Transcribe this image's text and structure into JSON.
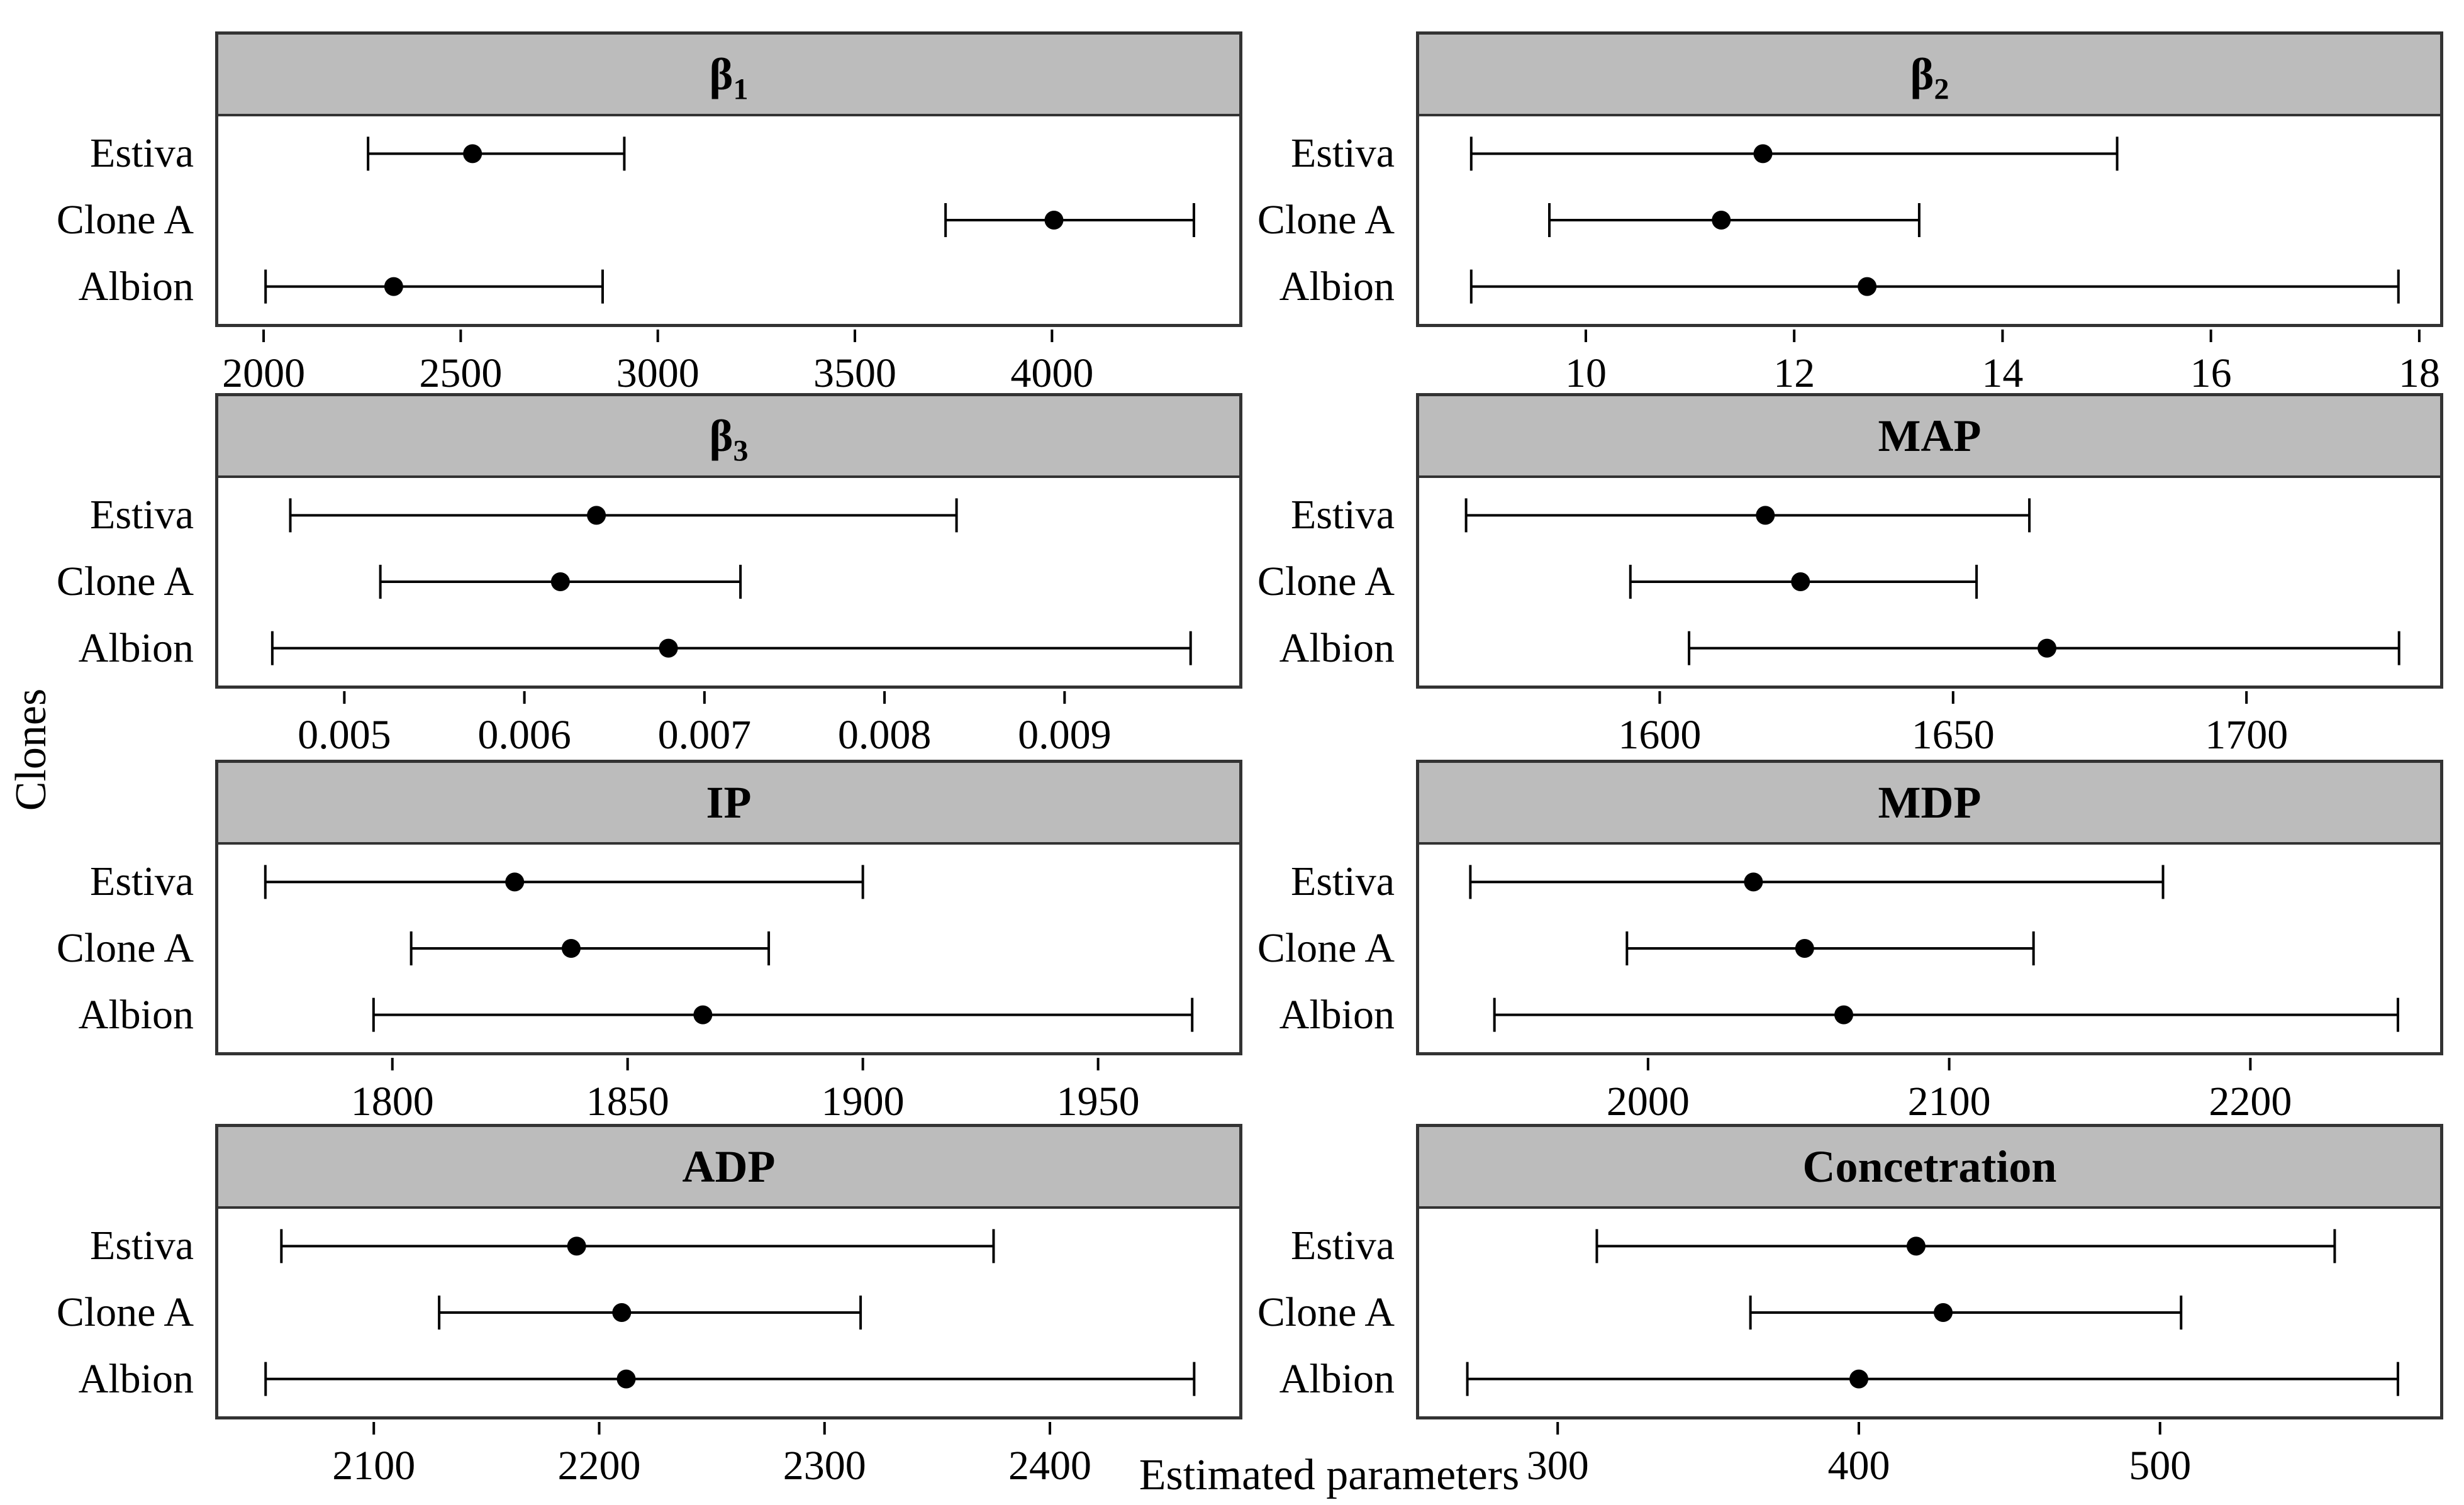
{
  "figure": {
    "x_axis_label": "Estimated parameters",
    "y_axis_label": "Clones",
    "colors": {
      "strip_bg": "#bcbcbc",
      "frame": "#333333",
      "data": "#000000",
      "page_bg": "#ffffff"
    }
  },
  "chart_data": {
    "type": "dotplot",
    "layout": "lattice 4 rows x 2 columns, point estimates with horizontal confidence-interval whiskers",
    "legend_position": "none",
    "grid": "off",
    "categories": [
      "Estiva",
      "Clone A",
      "Albion"
    ],
    "xlabel": "Estimated parameters",
    "ylabel": "Clones",
    "panels": [
      {
        "title": "β",
        "title_sub": "1",
        "xlim": [
          1885,
          4475
        ],
        "ticks": [
          2000,
          2500,
          3000,
          3500,
          4000
        ],
        "tick_labels": [
          "2000",
          "2500",
          "3000",
          "3500",
          "4000"
        ],
        "series": [
          {
            "clone": "Estiva",
            "estimate": 2530,
            "ci_low": 2265,
            "ci_high": 2915
          },
          {
            "clone": "Clone A",
            "estimate": 4005,
            "ci_low": 3730,
            "ci_high": 4360
          },
          {
            "clone": "Albion",
            "estimate": 2330,
            "ci_low": 2005,
            "ci_high": 2860
          }
        ]
      },
      {
        "title": "β",
        "title_sub": "2",
        "xlim": [
          8.4,
          18.2
        ],
        "ticks": [
          10,
          12,
          14,
          16,
          18
        ],
        "tick_labels": [
          "10",
          "12",
          "14",
          "16",
          "18"
        ],
        "series": [
          {
            "clone": "Estiva",
            "estimate": 11.7,
            "ci_low": 8.9,
            "ci_high": 15.1
          },
          {
            "clone": "Clone A",
            "estimate": 11.3,
            "ci_low": 9.65,
            "ci_high": 13.2
          },
          {
            "clone": "Albion",
            "estimate": 12.7,
            "ci_low": 8.9,
            "ci_high": 17.8
          }
        ]
      },
      {
        "title": "β",
        "title_sub": "3",
        "xlim": [
          0.0043,
          0.00997
        ],
        "ticks": [
          0.005,
          0.006,
          0.007,
          0.008,
          0.009
        ],
        "tick_labels": [
          "0.005",
          "0.006",
          "0.007",
          "0.008",
          "0.009"
        ],
        "series": [
          {
            "clone": "Estiva",
            "estimate": 0.0064,
            "ci_low": 0.0047,
            "ci_high": 0.0084
          },
          {
            "clone": "Clone A",
            "estimate": 0.0062,
            "ci_low": 0.0052,
            "ci_high": 0.0072
          },
          {
            "clone": "Albion",
            "estimate": 0.0068,
            "ci_low": 0.0046,
            "ci_high": 0.0097
          }
        ]
      },
      {
        "title": "MAP",
        "xlim": [
          1559,
          1733
        ],
        "ticks": [
          1600,
          1650,
          1700
        ],
        "tick_labels": [
          "1600",
          "1650",
          "1700"
        ],
        "series": [
          {
            "clone": "Estiva",
            "estimate": 1618,
            "ci_low": 1567,
            "ci_high": 1663
          },
          {
            "clone": "Clone A",
            "estimate": 1624,
            "ci_low": 1595,
            "ci_high": 1654
          },
          {
            "clone": "Albion",
            "estimate": 1666,
            "ci_low": 1605,
            "ci_high": 1726
          }
        ]
      },
      {
        "title": "IP",
        "xlim": [
          1763,
          1980
        ],
        "ticks": [
          1800,
          1850,
          1900,
          1950
        ],
        "tick_labels": [
          "1800",
          "1850",
          "1900",
          "1950"
        ],
        "series": [
          {
            "clone": "Estiva",
            "estimate": 1826,
            "ci_low": 1773,
            "ci_high": 1900
          },
          {
            "clone": "Clone A",
            "estimate": 1838,
            "ci_low": 1804,
            "ci_high": 1880
          },
          {
            "clone": "Albion",
            "estimate": 1866,
            "ci_low": 1796,
            "ci_high": 1970
          }
        ]
      },
      {
        "title": "MDP",
        "xlim": [
          1924,
          2263
        ],
        "ticks": [
          2000,
          2100,
          2200
        ],
        "tick_labels": [
          "2000",
          "2100",
          "2200"
        ],
        "series": [
          {
            "clone": "Estiva",
            "estimate": 2035,
            "ci_low": 1941,
            "ci_high": 2171
          },
          {
            "clone": "Clone A",
            "estimate": 2052,
            "ci_low": 1993,
            "ci_high": 2128
          },
          {
            "clone": "Albion",
            "estimate": 2065,
            "ci_low": 1949,
            "ci_high": 2249
          }
        ]
      },
      {
        "title": "ADP",
        "xlim": [
          2031,
          2484
        ],
        "ticks": [
          2100,
          2200,
          2300,
          2400
        ],
        "tick_labels": [
          "2100",
          "2200",
          "2300",
          "2400"
        ],
        "series": [
          {
            "clone": "Estiva",
            "estimate": 2190,
            "ci_low": 2059,
            "ci_high": 2375
          },
          {
            "clone": "Clone A",
            "estimate": 2210,
            "ci_low": 2129,
            "ci_high": 2316
          },
          {
            "clone": "Albion",
            "estimate": 2212,
            "ci_low": 2052,
            "ci_high": 2464
          }
        ]
      },
      {
        "title": "Concetration",
        "xlim": [
          254,
          593
        ],
        "ticks": [
          300,
          400,
          500
        ],
        "tick_labels": [
          "300",
          "400",
          "500"
        ],
        "series": [
          {
            "clone": "Estiva",
            "estimate": 419,
            "ci_low": 313,
            "ci_high": 558
          },
          {
            "clone": "Clone A",
            "estimate": 428,
            "ci_low": 364,
            "ci_high": 507
          },
          {
            "clone": "Albion",
            "estimate": 400,
            "ci_low": 270,
            "ci_high": 579
          }
        ]
      }
    ]
  }
}
